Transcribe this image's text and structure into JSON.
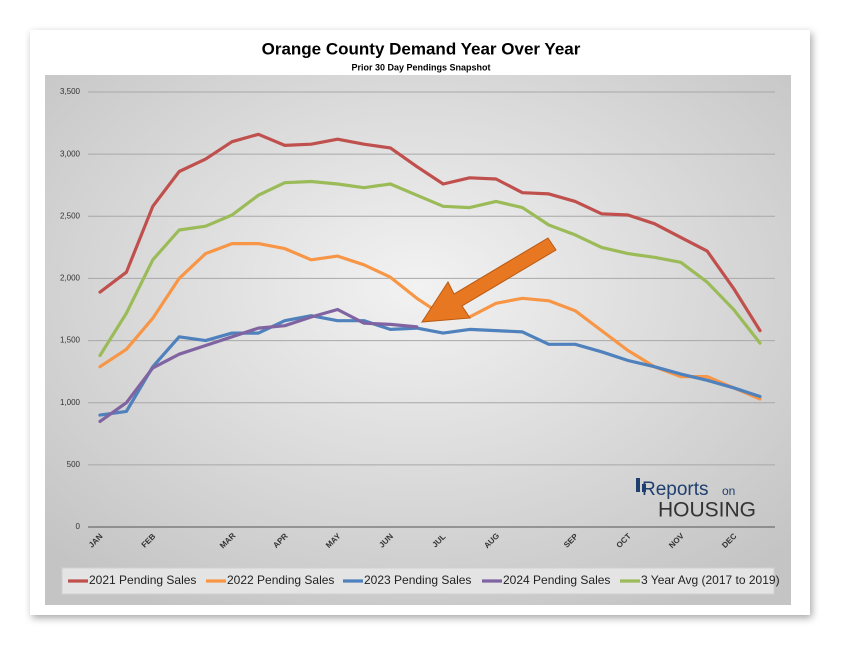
{
  "chart_data": {
    "type": "line",
    "title": "Orange County Demand Year Over Year",
    "subtitle": "Prior 30 Day Pendings Snapshot",
    "categories": [
      "JAN",
      null,
      "FEB",
      null,
      null,
      "MAR",
      null,
      "APR",
      null,
      "MAY",
      null,
      "JUN",
      null,
      "JUL",
      null,
      "AUG",
      null,
      null,
      "SEP",
      null,
      "OCT",
      null,
      "NOV",
      null,
      "DEC",
      null
    ],
    "series": [
      {
        "name": "2021 Pending Sales",
        "color": "#c0504d",
        "values": [
          1890,
          2050,
          2580,
          2860,
          2960,
          3100,
          3160,
          3070,
          3080,
          3120,
          3080,
          3050,
          2900,
          2760,
          2810,
          2800,
          2690,
          2680,
          2620,
          2520,
          2510,
          2440,
          2330,
          2220,
          1920,
          1580
        ]
      },
      {
        "name": "2022 Pending Sales",
        "color": "#f79646",
        "values": [
          1290,
          1430,
          1680,
          2000,
          2200,
          2280,
          2280,
          2240,
          2150,
          2180,
          2110,
          2010,
          1840,
          1700,
          1690,
          1800,
          1840,
          1820,
          1740,
          1580,
          1420,
          1290,
          1210,
          1210,
          1120,
          1030
        ]
      },
      {
        "name": "2023 Pending Sales",
        "color": "#4f81bd",
        "values": [
          900,
          930,
          1290,
          1530,
          1500,
          1560,
          1560,
          1660,
          1700,
          1660,
          1660,
          1590,
          1600,
          1560,
          1590,
          1580,
          1570,
          1470,
          1470,
          1410,
          1340,
          1290,
          1230,
          1180,
          1120,
          1050
        ]
      },
      {
        "name": "2024 Pending Sales",
        "color": "#8064a2",
        "values": [
          850,
          1000,
          1280,
          1390,
          1460,
          1530,
          1600,
          1620,
          1690,
          1750,
          1640,
          1630,
          1610,
          null,
          null,
          null,
          null,
          null,
          null,
          null,
          null,
          null,
          null,
          null,
          null,
          null
        ]
      },
      {
        "name": "3 Year Avg (2017 to 2019)",
        "color": "#9bbb59",
        "values": [
          1380,
          1720,
          2150,
          2390,
          2420,
          2510,
          2670,
          2770,
          2780,
          2760,
          2730,
          2760,
          2670,
          2580,
          2570,
          2620,
          2570,
          2430,
          2350,
          2250,
          2200,
          2170,
          2130,
          1970,
          1750,
          1480
        ]
      }
    ],
    "ylim": [
      0,
      3500
    ],
    "yticks": [
      0,
      500,
      {
        "value": 1000,
        "label": "1,000"
      },
      {
        "value": 1500,
        "label": "1,500"
      },
      {
        "value": 2000,
        "label": "2,000"
      },
      {
        "value": 2500,
        "label": "2,500"
      },
      {
        "value": 3000,
        "label": "3,000"
      },
      {
        "value": 3500,
        "label": "3,500"
      }
    ],
    "grid": true,
    "legend": "bottom",
    "logo": {
      "brand": "Reports",
      "small": "on",
      "word": "HOUSING"
    }
  }
}
